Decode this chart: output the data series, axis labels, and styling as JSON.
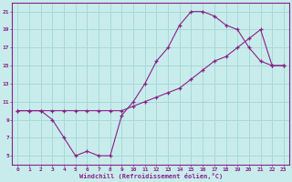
{
  "xlabel": "Windchill (Refroidissement éolien,°C)",
  "xlim": [
    -0.5,
    23.5
  ],
  "ylim": [
    4,
    22
  ],
  "xticks": [
    0,
    1,
    2,
    3,
    4,
    5,
    6,
    7,
    8,
    9,
    10,
    11,
    12,
    13,
    14,
    15,
    16,
    17,
    18,
    19,
    20,
    21,
    22,
    23
  ],
  "yticks": [
    5,
    7,
    9,
    11,
    13,
    15,
    17,
    19,
    21
  ],
  "bg_color": "#c8ecec",
  "line_color": "#882288",
  "grid_color": "#a8d8d8",
  "line1_x": [
    0,
    1,
    2,
    3,
    4,
    5,
    6,
    7,
    8,
    9,
    10,
    11,
    12,
    13,
    14,
    15,
    16,
    17,
    18,
    19,
    20,
    21,
    22,
    23
  ],
  "line1_y": [
    10,
    10,
    10,
    9,
    7,
    5,
    5.5,
    5,
    5,
    9.5,
    11,
    13,
    15.5,
    17,
    19.5,
    21,
    21,
    20.5,
    19.5,
    19,
    17,
    15.5,
    15,
    15
  ],
  "line2_x": [
    0,
    1,
    2,
    3,
    4,
    5,
    6,
    7,
    8,
    9,
    10,
    11,
    12,
    13,
    14,
    15,
    16,
    17,
    18,
    19,
    20,
    21,
    22,
    23
  ],
  "line2_y": [
    10,
    10,
    10,
    10,
    10,
    10,
    10,
    10,
    10,
    10,
    10.5,
    11,
    11.5,
    12,
    12.5,
    13.5,
    14.5,
    15.5,
    16,
    17,
    18,
    19,
    15,
    15
  ]
}
